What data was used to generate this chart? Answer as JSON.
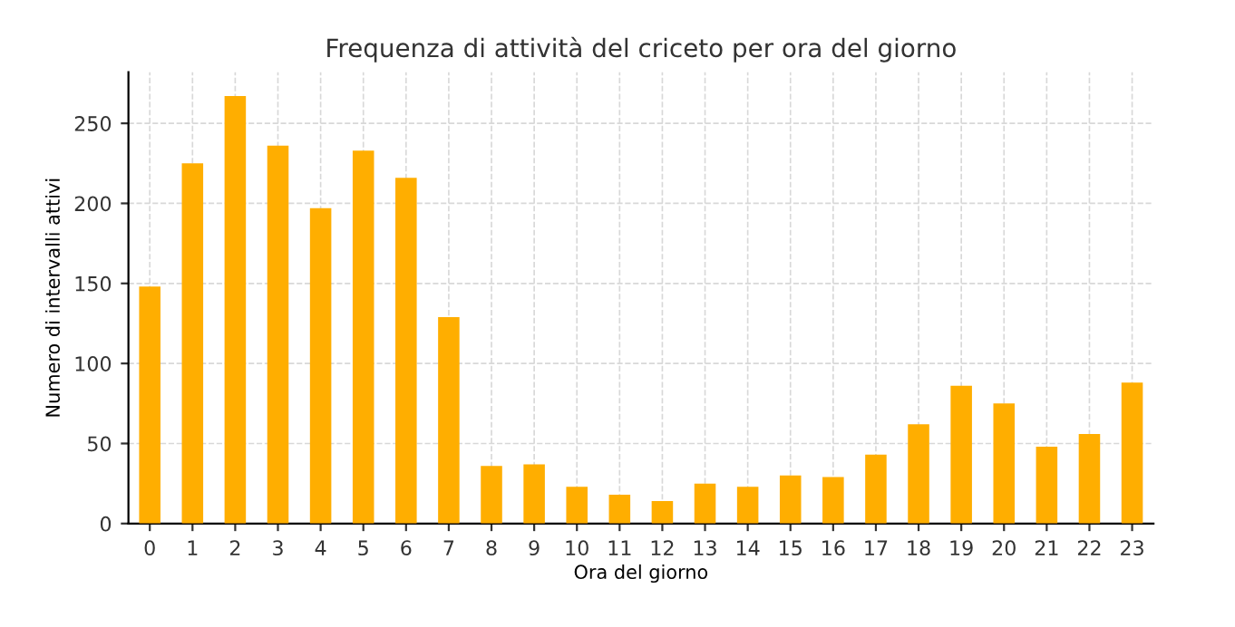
{
  "chart_data": {
    "type": "bar",
    "title": "Frequenza di attività del criceto per ora del giorno",
    "xlabel": "Ora del giorno",
    "ylabel": "Numero di intervalli attivi",
    "categories": [
      "0",
      "1",
      "2",
      "3",
      "4",
      "5",
      "6",
      "7",
      "8",
      "9",
      "10",
      "11",
      "12",
      "13",
      "14",
      "15",
      "16",
      "17",
      "18",
      "19",
      "20",
      "21",
      "22",
      "23"
    ],
    "values": [
      148,
      225,
      267,
      236,
      197,
      233,
      216,
      129,
      36,
      37,
      23,
      18,
      14,
      25,
      23,
      30,
      29,
      43,
      62,
      86,
      75,
      48,
      56,
      88
    ],
    "color": "#ffae00",
    "ylim": [
      0,
      282
    ],
    "yticks": [
      0,
      50,
      100,
      150,
      200,
      250
    ],
    "grid": true
  }
}
